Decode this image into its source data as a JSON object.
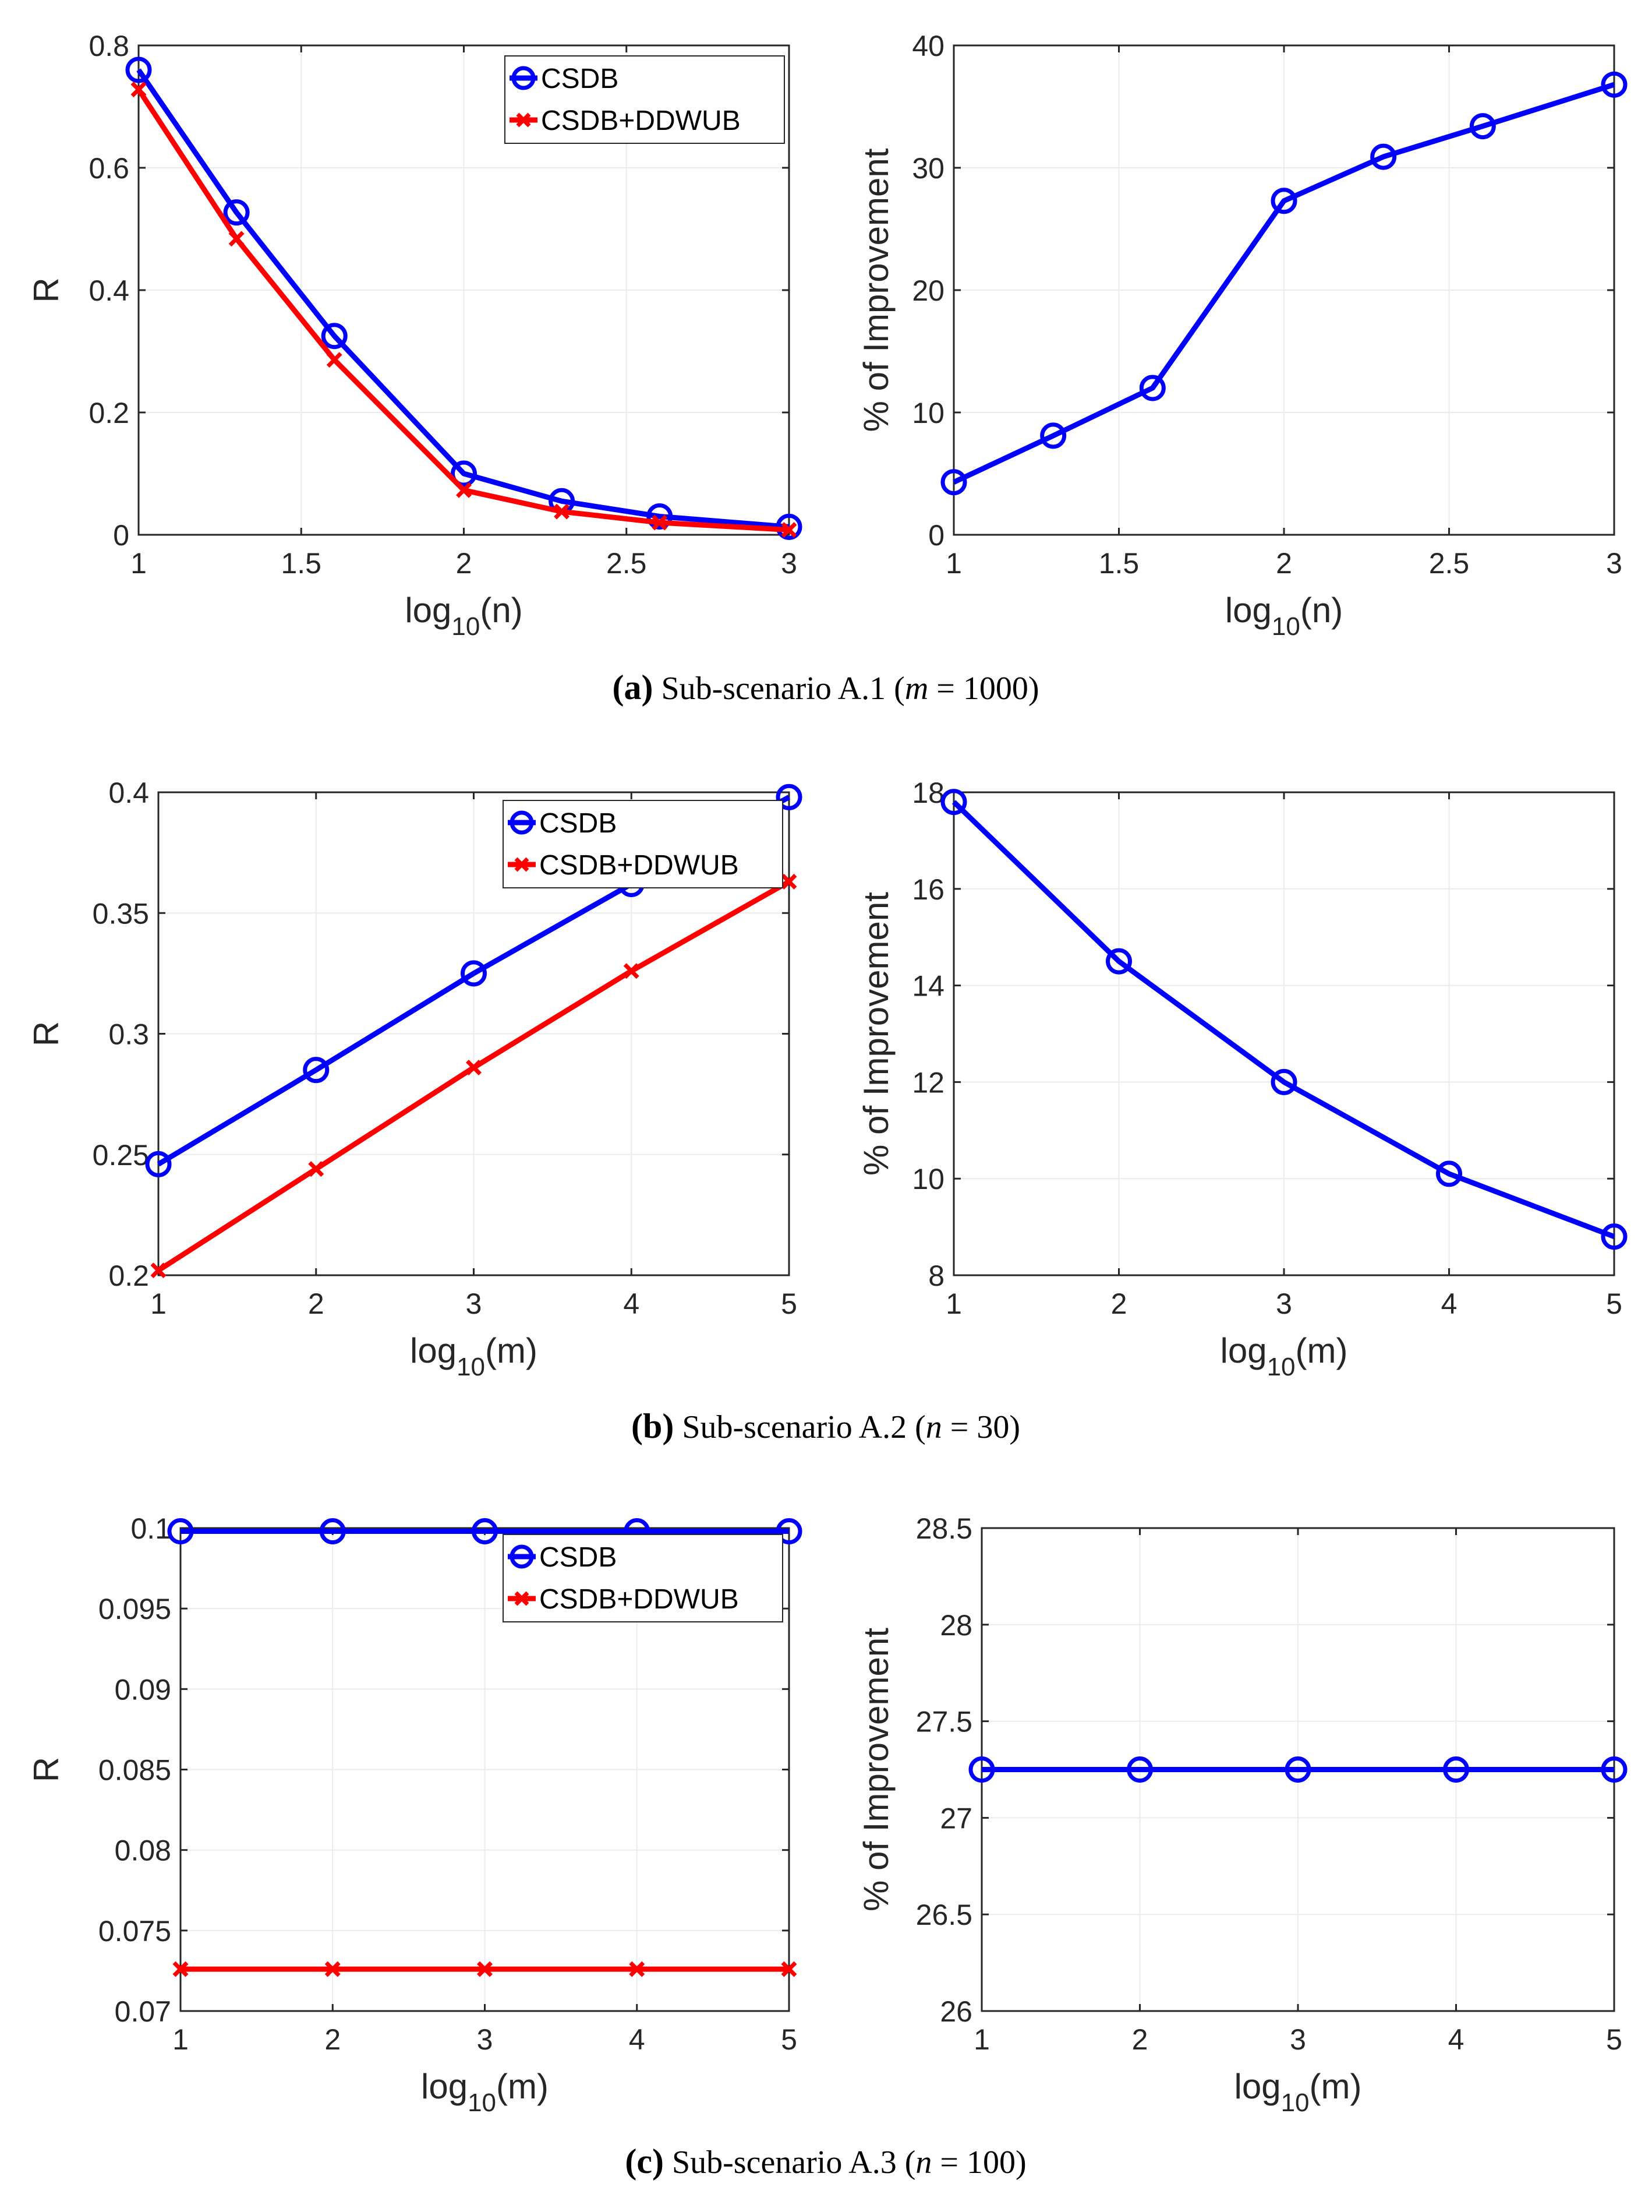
{
  "chart_data": [
    {
      "id": "a-left",
      "type": "line",
      "xlabel_base": "log",
      "xlabel_sub": "10",
      "xlabel_var": "(n)",
      "ylabel": "R",
      "xlim": [
        1,
        3
      ],
      "ylim": [
        0,
        0.8
      ],
      "xticks": [
        1,
        1.5,
        2,
        2.5,
        3
      ],
      "xtick_labels": [
        "1",
        "1.5",
        "2",
        "2.5",
        "3"
      ],
      "yticks": [
        0,
        0.2,
        0.4,
        0.6,
        0.8
      ],
      "ytick_labels": [
        "0",
        "0.2",
        "0.4",
        "0.6",
        "0.8"
      ],
      "legend": "top-right",
      "series": [
        {
          "name": "CSDB",
          "color": "#0000ff",
          "marker": "circle",
          "x": [
            1,
            1.301,
            1.602,
            2,
            2.301,
            2.602,
            3
          ],
          "values": [
            0.76,
            0.527,
            0.325,
            0.1,
            0.055,
            0.03,
            0.013
          ]
        },
        {
          "name": "CSDB+DDWUB",
          "color": "#ff0000",
          "marker": "x",
          "x": [
            1,
            1.301,
            1.602,
            2,
            2.301,
            2.602,
            3
          ],
          "values": [
            0.728,
            0.484,
            0.286,
            0.073,
            0.038,
            0.02,
            0.008
          ]
        }
      ]
    },
    {
      "id": "a-right",
      "type": "line",
      "xlabel_base": "log",
      "xlabel_sub": "10",
      "xlabel_var": "(n)",
      "ylabel": "% of Improvement",
      "xlim": [
        1,
        3
      ],
      "ylim": [
        0,
        40
      ],
      "xticks": [
        1,
        1.5,
        2,
        2.5,
        3
      ],
      "xtick_labels": [
        "1",
        "1.5",
        "2",
        "2.5",
        "3"
      ],
      "yticks": [
        0,
        10,
        20,
        30,
        40
      ],
      "ytick_labels": [
        "0",
        "10",
        "20",
        "30",
        "40"
      ],
      "series": [
        {
          "name": "Improvement",
          "color": "#0000ff",
          "marker": "circle",
          "x": [
            1,
            1.301,
            1.602,
            2,
            2.301,
            2.602,
            3
          ],
          "values": [
            4.3,
            8.1,
            12.0,
            27.3,
            30.9,
            33.4,
            36.8
          ]
        }
      ]
    },
    {
      "id": "b-left",
      "type": "line",
      "xlabel_base": "log",
      "xlabel_sub": "10",
      "xlabel_var": "(m)",
      "ylabel": "R",
      "xlim": [
        1,
        5
      ],
      "ylim": [
        0.2,
        0.4
      ],
      "xticks": [
        1,
        2,
        3,
        4,
        5
      ],
      "xtick_labels": [
        "1",
        "2",
        "3",
        "4",
        "5"
      ],
      "yticks": [
        0.2,
        0.25,
        0.3,
        0.35,
        0.4
      ],
      "ytick_labels": [
        "0.2",
        "0.25",
        "0.3",
        "0.35",
        "0.4"
      ],
      "legend": "top-right",
      "series": [
        {
          "name": "CSDB",
          "color": "#0000ff",
          "marker": "circle",
          "x": [
            1,
            2,
            3,
            4,
            5
          ],
          "values": [
            0.246,
            0.285,
            0.325,
            0.362,
            0.398
          ]
        },
        {
          "name": "CSDB+DDWUB",
          "color": "#ff0000",
          "marker": "x",
          "x": [
            1,
            2,
            3,
            4,
            5
          ],
          "values": [
            0.202,
            0.244,
            0.286,
            0.326,
            0.363
          ]
        }
      ]
    },
    {
      "id": "b-right",
      "type": "line",
      "xlabel_base": "log",
      "xlabel_sub": "10",
      "xlabel_var": "(m)",
      "ylabel": "% of Improvement",
      "xlim": [
        1,
        5
      ],
      "ylim": [
        8,
        18
      ],
      "xticks": [
        1,
        2,
        3,
        4,
        5
      ],
      "xtick_labels": [
        "1",
        "2",
        "3",
        "4",
        "5"
      ],
      "yticks": [
        8,
        10,
        12,
        14,
        16,
        18
      ],
      "ytick_labels": [
        "8",
        "10",
        "12",
        "14",
        "16",
        "18"
      ],
      "series": [
        {
          "name": "Improvement",
          "color": "#0000ff",
          "marker": "circle",
          "x": [
            1,
            2,
            3,
            4,
            5
          ],
          "values": [
            17.8,
            14.5,
            12.0,
            10.1,
            8.8
          ]
        }
      ]
    },
    {
      "id": "c-left",
      "type": "line",
      "xlabel_base": "log",
      "xlabel_sub": "10",
      "xlabel_var": "(m)",
      "ylabel": "R",
      "xlim": [
        1,
        5
      ],
      "ylim": [
        0.07,
        0.1
      ],
      "xticks": [
        1,
        2,
        3,
        4,
        5
      ],
      "xtick_labels": [
        "1",
        "2",
        "3",
        "4",
        "5"
      ],
      "yticks": [
        0.07,
        0.075,
        0.08,
        0.085,
        0.09,
        0.095,
        0.1
      ],
      "ytick_labels": [
        "0.07",
        "0.075",
        "0.08",
        "0.085",
        "0.09",
        "0.095",
        "0.1"
      ],
      "legend": "top-right",
      "series": [
        {
          "name": "CSDB",
          "color": "#0000ff",
          "marker": "circle",
          "x": [
            1,
            2,
            3,
            4,
            5
          ],
          "values": [
            0.0998,
            0.0998,
            0.0998,
            0.0998,
            0.0998
          ]
        },
        {
          "name": "CSDB+DDWUB",
          "color": "#ff0000",
          "marker": "x",
          "x": [
            1,
            2,
            3,
            4,
            5
          ],
          "values": [
            0.0726,
            0.0726,
            0.0726,
            0.0726,
            0.0726
          ]
        }
      ]
    },
    {
      "id": "c-right",
      "type": "line",
      "xlabel_base": "log",
      "xlabel_sub": "10",
      "xlabel_var": "(m)",
      "ylabel": "% of Improvement",
      "xlim": [
        1,
        5
      ],
      "ylim": [
        26,
        28.5
      ],
      "xticks": [
        1,
        2,
        3,
        4,
        5
      ],
      "xtick_labels": [
        "1",
        "2",
        "3",
        "4",
        "5"
      ],
      "yticks": [
        26,
        26.5,
        27,
        27.5,
        28,
        28.5
      ],
      "ytick_labels": [
        "26",
        "26.5",
        "27",
        "27.5",
        "28",
        "28.5"
      ],
      "series": [
        {
          "name": "Improvement",
          "color": "#0000ff",
          "marker": "circle",
          "x": [
            1,
            2,
            3,
            4,
            5
          ],
          "values": [
            27.25,
            27.25,
            27.25,
            27.25,
            27.25
          ]
        }
      ]
    }
  ],
  "captions": [
    {
      "letter": "a",
      "text": "Sub-scenario A.1",
      "param": "m",
      "value": "1000"
    },
    {
      "letter": "b",
      "text": "Sub-scenario A.2",
      "param": "n",
      "value": "30"
    },
    {
      "letter": "c",
      "text": "Sub-scenario A.3",
      "param": "n",
      "value": "100"
    }
  ]
}
